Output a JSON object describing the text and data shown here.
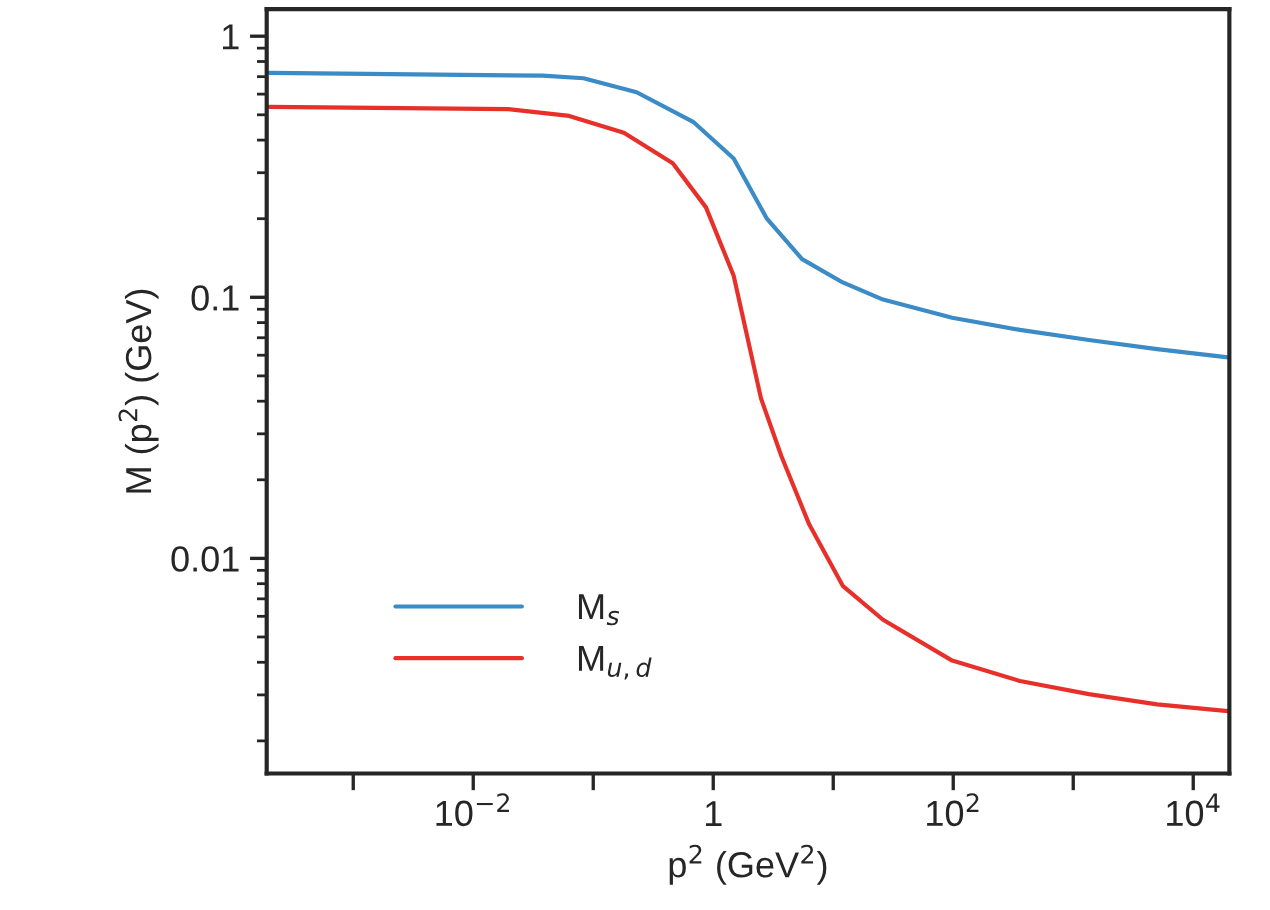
{
  "chart_data": {
    "type": "line",
    "xlabel": "p$^{2}$ (GeV$^{2}$)",
    "ylabel": "M (p$^{2}$) (GeV)",
    "log": "xy",
    "xlim": [
      0.00019,
      20000
    ],
    "ylim": [
      0.0015,
      1.27
    ],
    "xticks": [
      {
        "value": 0.001,
        "label": null
      },
      {
        "value": 0.01,
        "label": "10$^{−2}$"
      },
      {
        "value": 0.1,
        "label": null
      },
      1,
      {
        "value": 10,
        "label": null
      },
      {
        "value": 100,
        "label": "10$^{2}$"
      },
      {
        "value": 1000,
        "label": null
      },
      {
        "value": 10000,
        "label": "10$^{4}$"
      }
    ],
    "yticks": [
      0.01,
      0.1,
      1
    ],
    "grid": false,
    "legend": "bottom left",
    "marker": "none",
    "line_style": "solid",
    "series": [
      {
        "name": "M$_{s}$",
        "color": "#3b8bc6",
        "x": [
          0.0002,
          0.038,
          0.083,
          0.23,
          0.68,
          1.48,
          2.8,
          5.5,
          12,
          26,
          98,
          360,
          1350,
          5000,
          19500
        ],
        "values": [
          0.724,
          0.706,
          0.69,
          0.61,
          0.47,
          0.34,
          0.2,
          0.14,
          0.114,
          0.098,
          0.0835,
          0.075,
          0.0686,
          0.0633,
          0.0589
        ]
      },
      {
        "name": "M$_{u,d}$",
        "color": "#e8302a",
        "x": [
          0.0002,
          0.0195,
          0.063,
          0.18,
          0.46,
          0.87,
          1.48,
          2.5,
          3.7,
          6.3,
          12,
          26,
          98,
          360,
          1350,
          5000,
          19500
        ],
        "values": [
          0.536,
          0.526,
          0.495,
          0.427,
          0.326,
          0.221,
          0.121,
          0.041,
          0.0246,
          0.0135,
          0.00785,
          0.00582,
          0.00406,
          0.00339,
          0.00302,
          0.00276,
          0.0026
        ]
      }
    ]
  }
}
